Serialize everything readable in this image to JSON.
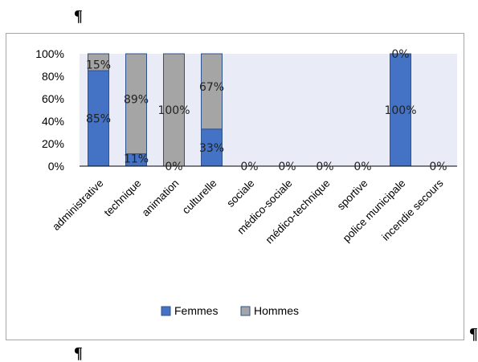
{
  "page": {
    "pilcrow_top": "¶",
    "pilcrow_right": "¶",
    "pilcrow_bottom": "¶"
  },
  "colors": {
    "femmes": "#4472c4",
    "femmes_stroke": "#2f528f",
    "hommes": "#a5a5a5",
    "hommes_stroke": "#2f528f",
    "plot_bg": "#e9ecf6"
  },
  "chart_data": {
    "type": "bar",
    "stacked": true,
    "percent": true,
    "title": "",
    "xlabel": "",
    "ylabel": "",
    "ylim": [
      0,
      100
    ],
    "y_ticks": [
      "0%",
      "20%",
      "40%",
      "60%",
      "80%",
      "100%"
    ],
    "categories": [
      "administrative",
      "technique",
      "animation",
      "culturelle",
      "sociale",
      "médico-sociale",
      "médico-technique",
      "sportive",
      "police municipale",
      "incendie secours"
    ],
    "series": [
      {
        "name": "Femmes",
        "values": [
          85,
          11,
          0,
          33,
          0,
          0,
          0,
          0,
          100,
          0
        ],
        "labels": [
          "85%",
          "11%",
          "0%",
          "33%",
          "0%",
          "0%",
          "0%",
          "0%",
          "100%",
          "0%"
        ]
      },
      {
        "name": "Hommes",
        "values": [
          15,
          89,
          100,
          67,
          0,
          0,
          0,
          0,
          0,
          0
        ],
        "labels": [
          "15%",
          "89%",
          "100%",
          "67%",
          "",
          "",
          "",
          "",
          "0%",
          ""
        ]
      }
    ],
    "legend_position": "bottom",
    "grid": false
  }
}
